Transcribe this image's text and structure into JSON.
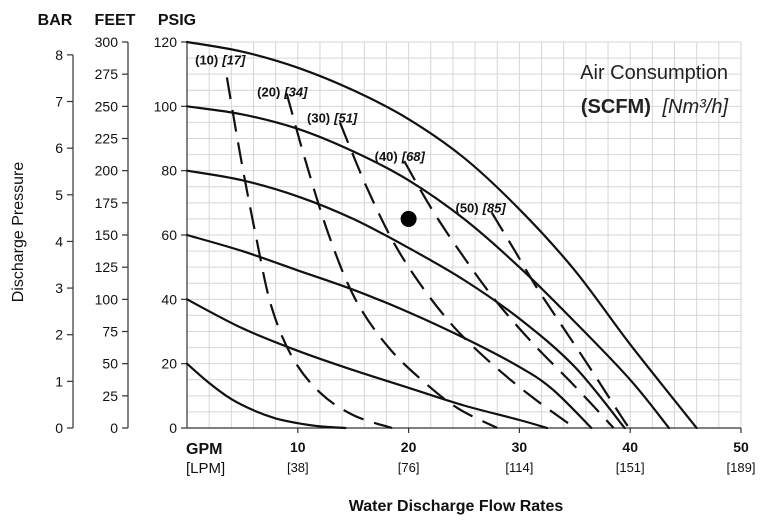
{
  "chart_data": {
    "type": "line",
    "title": "Air Consumption",
    "subtitle": {
      "bold": "(SCFM)",
      "italic": "[Nm³/h]"
    },
    "xlabel": "Water Discharge Flow Rates",
    "ylabel": "Discharge Pressure",
    "x_unit_primary": "GPM",
    "x_unit_secondary": "[LPM]",
    "xlim": [
      0,
      50
    ],
    "ylim": [
      0,
      120
    ],
    "x_ticks": [
      {
        "gpm": 10,
        "label": "10",
        "lpm": "[38]"
      },
      {
        "gpm": 20,
        "label": "20",
        "lpm": "[76]"
      },
      {
        "gpm": 30,
        "label": "30",
        "lpm": "[114]"
      },
      {
        "gpm": 40,
        "label": "40",
        "lpm": "[151]"
      },
      {
        "gpm": 50,
        "label": "50",
        "lpm": "[189]"
      }
    ],
    "y_axes": [
      {
        "name": "BAR",
        "ticks": [
          {
            "v": 0,
            "label": "0"
          },
          {
            "v": 14.5,
            "label": "1"
          },
          {
            "v": 29,
            "label": "2"
          },
          {
            "v": 43.5,
            "label": "3"
          },
          {
            "v": 58,
            "label": "4"
          },
          {
            "v": 72.5,
            "label": "5"
          },
          {
            "v": 87,
            "label": "6"
          },
          {
            "v": 101.5,
            "label": "7"
          },
          {
            "v": 116,
            "label": "8"
          }
        ]
      },
      {
        "name": "FEET",
        "ticks": [
          {
            "v": 0,
            "label": "0"
          },
          {
            "v": 10,
            "label": "25"
          },
          {
            "v": 20,
            "label": "50"
          },
          {
            "v": 30,
            "label": "75"
          },
          {
            "v": 40,
            "label": "100"
          },
          {
            "v": 50,
            "label": "125"
          },
          {
            "v": 60,
            "label": "150"
          },
          {
            "v": 70,
            "label": "175"
          },
          {
            "v": 80,
            "label": "200"
          },
          {
            "v": 90,
            "label": "225"
          },
          {
            "v": 100,
            "label": "250"
          },
          {
            "v": 110,
            "label": "275"
          },
          {
            "v": 120,
            "label": "300"
          }
        ]
      },
      {
        "name": "PSIG",
        "ticks": [
          {
            "v": 0,
            "label": "0"
          },
          {
            "v": 20,
            "label": "20"
          },
          {
            "v": 40,
            "label": "40"
          },
          {
            "v": 60,
            "label": "60"
          },
          {
            "v": 80,
            "label": "80"
          },
          {
            "v": 100,
            "label": "100"
          },
          {
            "v": 120,
            "label": "120"
          }
        ]
      }
    ],
    "grid": true,
    "pressure_curves": [
      {
        "points": [
          [
            0,
            20
          ],
          [
            2,
            14
          ],
          [
            4,
            9
          ],
          [
            6,
            5.5
          ],
          [
            8,
            3
          ],
          [
            10,
            1.5
          ],
          [
            12,
            0.5
          ],
          [
            14.3,
            0
          ]
        ]
      },
      {
        "points": [
          [
            0,
            40
          ],
          [
            5,
            31
          ],
          [
            10,
            24
          ],
          [
            15,
            18
          ],
          [
            20,
            12.5
          ],
          [
            25,
            7
          ],
          [
            30,
            2.5
          ],
          [
            32.5,
            0
          ]
        ]
      },
      {
        "points": [
          [
            0,
            60
          ],
          [
            5,
            55
          ],
          [
            10,
            49
          ],
          [
            15,
            43
          ],
          [
            20,
            36
          ],
          [
            25,
            28
          ],
          [
            30,
            19
          ],
          [
            33,
            12
          ],
          [
            36.5,
            0
          ]
        ]
      },
      {
        "points": [
          [
            0,
            80
          ],
          [
            5,
            77
          ],
          [
            10,
            72
          ],
          [
            15,
            65
          ],
          [
            20,
            56
          ],
          [
            25,
            46
          ],
          [
            30,
            34
          ],
          [
            35,
            19
          ],
          [
            39.5,
            0
          ]
        ]
      },
      {
        "points": [
          [
            0,
            100
          ],
          [
            5,
            97.5
          ],
          [
            10,
            93
          ],
          [
            15,
            86
          ],
          [
            20,
            77
          ],
          [
            25,
            65
          ],
          [
            30,
            50
          ],
          [
            35,
            33
          ],
          [
            40,
            15
          ],
          [
            43.5,
            0
          ]
        ]
      },
      {
        "points": [
          [
            0,
            120
          ],
          [
            5,
            117
          ],
          [
            10,
            112
          ],
          [
            15,
            105
          ],
          [
            20,
            96
          ],
          [
            25,
            84
          ],
          [
            30,
            68
          ],
          [
            35,
            49
          ],
          [
            40,
            26
          ],
          [
            46,
            0
          ]
        ]
      }
    ],
    "air_curves": [
      {
        "label": "(10)",
        "metric": "[17]",
        "label_at": [
          3.0,
          113
        ],
        "points": [
          [
            3.6,
            109
          ],
          [
            4.8,
            85
          ],
          [
            6.2,
            60
          ],
          [
            7.6,
            38
          ],
          [
            9.5,
            22
          ],
          [
            12,
            11
          ],
          [
            15,
            4
          ],
          [
            18.5,
            0
          ]
        ]
      },
      {
        "label": "(20)",
        "metric": "[34]",
        "label_at": [
          8.6,
          103
        ],
        "points": [
          [
            9.0,
            104
          ],
          [
            10.7,
            83
          ],
          [
            12.8,
            60
          ],
          [
            15.2,
            40
          ],
          [
            18.2,
            25
          ],
          [
            21.5,
            14
          ],
          [
            24.5,
            6
          ],
          [
            28,
            0
          ]
        ]
      },
      {
        "label": "(30)",
        "metric": "[51]",
        "label_at": [
          13.1,
          95
        ],
        "points": [
          [
            13.8,
            95
          ],
          [
            16.2,
            75
          ],
          [
            18.6,
            58
          ],
          [
            21.2,
            44
          ],
          [
            24.2,
            31
          ],
          [
            27.5,
            20
          ],
          [
            31,
            10
          ],
          [
            35,
            0
          ]
        ]
      },
      {
        "label": "(40)",
        "metric": "[68]",
        "label_at": [
          19.2,
          83
        ],
        "points": [
          [
            19.6,
            83
          ],
          [
            22.1,
            68
          ],
          [
            25,
            53
          ],
          [
            28,
            39
          ],
          [
            31.3,
            26
          ],
          [
            35,
            13
          ],
          [
            38.5,
            0
          ]
        ]
      },
      {
        "label": "(50)",
        "metric": "[85]",
        "label_at": [
          26.5,
          67
        ],
        "points": [
          [
            27.5,
            67
          ],
          [
            29.6,
            55
          ],
          [
            31.5,
            44
          ],
          [
            33.8,
            32
          ],
          [
            36.5,
            18
          ],
          [
            39.5,
            2
          ],
          [
            40,
            0
          ]
        ]
      }
    ],
    "marker": {
      "x": 20,
      "y": 65
    }
  }
}
